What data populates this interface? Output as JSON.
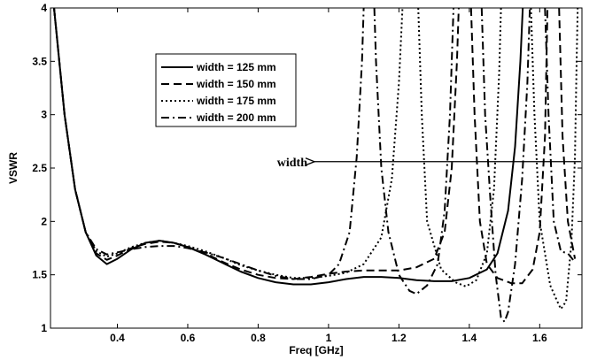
{
  "chart_data": {
    "type": "line",
    "title": "",
    "xlabel": "Freq [GHz]",
    "ylabel": "VSWR",
    "xlim": [
      0.21,
      1.72
    ],
    "ylim": [
      1,
      4
    ],
    "grid": false,
    "legend_position": "top-left",
    "x_ticks": [
      {
        "value": 0.4,
        "label": "0.4"
      },
      {
        "value": 0.6,
        "label": "0.6"
      },
      {
        "value": 0.8,
        "label": "0.8"
      },
      {
        "value": 1.0,
        "label": "1"
      },
      {
        "value": 1.2,
        "label": "1.2"
      },
      {
        "value": 1.4,
        "label": "1.4"
      },
      {
        "value": 1.6,
        "label": "1.6"
      }
    ],
    "y_ticks": [
      {
        "value": 1,
        "label": "1"
      },
      {
        "value": 1.5,
        "label": "1.5"
      },
      {
        "value": 2,
        "label": "2"
      },
      {
        "value": 2.5,
        "label": "2.5"
      },
      {
        "value": 3,
        "label": "3"
      },
      {
        "value": 3.5,
        "label": "3.5"
      },
      {
        "value": 4,
        "label": "4"
      }
    ],
    "series": [
      {
        "name": "width = 125 mm",
        "dash": "solid",
        "points": [
          [
            0.22,
            4.0
          ],
          [
            0.25,
            3.0
          ],
          [
            0.28,
            2.3
          ],
          [
            0.31,
            1.9
          ],
          [
            0.34,
            1.68
          ],
          [
            0.37,
            1.6
          ],
          [
            0.4,
            1.65
          ],
          [
            0.44,
            1.74
          ],
          [
            0.48,
            1.8
          ],
          [
            0.52,
            1.82
          ],
          [
            0.56,
            1.8
          ],
          [
            0.6,
            1.76
          ],
          [
            0.65,
            1.69
          ],
          [
            0.7,
            1.61
          ],
          [
            0.75,
            1.53
          ],
          [
            0.8,
            1.47
          ],
          [
            0.85,
            1.43
          ],
          [
            0.9,
            1.41
          ],
          [
            0.95,
            1.41
          ],
          [
            1.0,
            1.43
          ],
          [
            1.05,
            1.46
          ],
          [
            1.1,
            1.48
          ],
          [
            1.15,
            1.48
          ],
          [
            1.2,
            1.47
          ],
          [
            1.25,
            1.45
          ],
          [
            1.3,
            1.44
          ],
          [
            1.35,
            1.44
          ],
          [
            1.4,
            1.47
          ],
          [
            1.45,
            1.55
          ],
          [
            1.48,
            1.7
          ],
          [
            1.51,
            2.1
          ],
          [
            1.53,
            2.7
          ],
          [
            1.545,
            3.5
          ],
          [
            1.552,
            4.0
          ]
        ]
      },
      {
        "name": "width = 150 mm",
        "dash": "dashed",
        "points": [
          [
            0.22,
            4.0
          ],
          [
            0.25,
            3.0
          ],
          [
            0.28,
            2.3
          ],
          [
            0.31,
            1.9
          ],
          [
            0.34,
            1.7
          ],
          [
            0.37,
            1.64
          ],
          [
            0.4,
            1.68
          ],
          [
            0.44,
            1.75
          ],
          [
            0.48,
            1.79
          ],
          [
            0.52,
            1.81
          ],
          [
            0.56,
            1.8
          ],
          [
            0.6,
            1.76
          ],
          [
            0.65,
            1.7
          ],
          [
            0.7,
            1.62
          ],
          [
            0.75,
            1.55
          ],
          [
            0.8,
            1.5
          ],
          [
            0.85,
            1.47
          ],
          [
            0.9,
            1.46
          ],
          [
            0.95,
            1.48
          ],
          [
            1.0,
            1.51
          ],
          [
            1.05,
            1.53
          ],
          [
            1.1,
            1.54
          ],
          [
            1.15,
            1.54
          ],
          [
            1.2,
            1.54
          ],
          [
            1.25,
            1.57
          ],
          [
            1.3,
            1.65
          ],
          [
            1.33,
            1.9
          ],
          [
            1.35,
            2.5
          ],
          [
            1.365,
            3.5
          ],
          [
            1.37,
            4.0
          ],
          null,
          [
            1.405,
            4.0
          ],
          [
            1.415,
            3.0
          ],
          [
            1.43,
            2.0
          ],
          [
            1.45,
            1.6
          ],
          [
            1.48,
            1.47
          ],
          [
            1.52,
            1.42
          ],
          [
            1.55,
            1.42
          ],
          [
            1.58,
            1.55
          ],
          [
            1.6,
            1.9
          ],
          [
            1.615,
            2.8
          ],
          [
            1.622,
            4.0
          ],
          null,
          [
            1.655,
            4.0
          ],
          [
            1.665,
            2.8
          ],
          [
            1.68,
            2.0
          ],
          [
            1.7,
            1.65
          ]
        ]
      },
      {
        "name": "width = 175 mm",
        "dash": "dotted",
        "points": [
          [
            0.22,
            4.0
          ],
          [
            0.25,
            3.0
          ],
          [
            0.28,
            2.3
          ],
          [
            0.31,
            1.9
          ],
          [
            0.34,
            1.72
          ],
          [
            0.37,
            1.67
          ],
          [
            0.4,
            1.7
          ],
          [
            0.44,
            1.76
          ],
          [
            0.48,
            1.8
          ],
          [
            0.52,
            1.82
          ],
          [
            0.56,
            1.8
          ],
          [
            0.6,
            1.77
          ],
          [
            0.65,
            1.72
          ],
          [
            0.7,
            1.66
          ],
          [
            0.75,
            1.59
          ],
          [
            0.8,
            1.54
          ],
          [
            0.85,
            1.5
          ],
          [
            0.9,
            1.47
          ],
          [
            0.95,
            1.47
          ],
          [
            1.0,
            1.49
          ],
          [
            1.05,
            1.52
          ],
          [
            1.1,
            1.6
          ],
          [
            1.15,
            1.85
          ],
          [
            1.18,
            2.4
          ],
          [
            1.2,
            3.3
          ],
          [
            1.21,
            4.0
          ],
          null,
          [
            1.255,
            4.0
          ],
          [
            1.265,
            3.0
          ],
          [
            1.28,
            2.0
          ],
          [
            1.32,
            1.55
          ],
          [
            1.36,
            1.43
          ],
          [
            1.39,
            1.39
          ],
          [
            1.42,
            1.45
          ],
          [
            1.45,
            1.7
          ],
          [
            1.47,
            2.3
          ],
          [
            1.485,
            3.4
          ],
          [
            1.49,
            4.0
          ],
          null,
          [
            1.575,
            4.0
          ],
          [
            1.585,
            3.0
          ],
          [
            1.6,
            2.0
          ],
          [
            1.63,
            1.4
          ],
          [
            1.65,
            1.25
          ],
          [
            1.66,
            1.18
          ],
          [
            1.675,
            1.25
          ],
          [
            1.69,
            1.8
          ],
          [
            1.7,
            2.6
          ],
          [
            1.705,
            3.5
          ],
          [
            1.708,
            4.0
          ]
        ]
      },
      {
        "name": "width = 200 mm",
        "dash": "dashdot",
        "points": [
          [
            0.22,
            4.0
          ],
          [
            0.25,
            3.0
          ],
          [
            0.28,
            2.3
          ],
          [
            0.31,
            1.9
          ],
          [
            0.34,
            1.74
          ],
          [
            0.37,
            1.69
          ],
          [
            0.4,
            1.71
          ],
          [
            0.44,
            1.74
          ],
          [
            0.48,
            1.76
          ],
          [
            0.52,
            1.77
          ],
          [
            0.56,
            1.77
          ],
          [
            0.6,
            1.75
          ],
          [
            0.65,
            1.71
          ],
          [
            0.7,
            1.66
          ],
          [
            0.75,
            1.6
          ],
          [
            0.8,
            1.54
          ],
          [
            0.85,
            1.49
          ],
          [
            0.9,
            1.46
          ],
          [
            0.95,
            1.46
          ],
          [
            1.0,
            1.5
          ],
          [
            1.03,
            1.6
          ],
          [
            1.06,
            1.9
          ],
          [
            1.08,
            2.6
          ],
          [
            1.095,
            3.5
          ],
          [
            1.1,
            4.0
          ],
          null,
          [
            1.13,
            4.0
          ],
          [
            1.135,
            3.5
          ],
          [
            1.15,
            2.5
          ],
          [
            1.17,
            1.9
          ],
          [
            1.2,
            1.5
          ],
          [
            1.23,
            1.35
          ],
          [
            1.25,
            1.32
          ],
          [
            1.28,
            1.4
          ],
          [
            1.31,
            1.6
          ],
          [
            1.33,
            2.1
          ],
          [
            1.345,
            3.0
          ],
          [
            1.355,
            4.0
          ],
          null,
          [
            1.435,
            4.0
          ],
          [
            1.445,
            3.0
          ],
          [
            1.46,
            2.2
          ],
          [
            1.475,
            1.5
          ],
          [
            1.49,
            1.1
          ],
          [
            1.5,
            1.06
          ],
          [
            1.51,
            1.15
          ],
          [
            1.53,
            1.6
          ],
          [
            1.55,
            2.4
          ],
          [
            1.565,
            3.3
          ],
          [
            1.572,
            4.0
          ],
          null,
          [
            1.615,
            4.0
          ],
          [
            1.625,
            3.0
          ],
          [
            1.64,
            2.0
          ],
          [
            1.66,
            1.72
          ],
          [
            1.68,
            1.7
          ],
          [
            1.7,
            1.62
          ]
        ]
      }
    ],
    "annotations": [
      {
        "text": "width",
        "arrow_from": [
          1.72,
          2.56
        ],
        "arrow_to": [
          0.96,
          2.56
        ]
      }
    ]
  }
}
